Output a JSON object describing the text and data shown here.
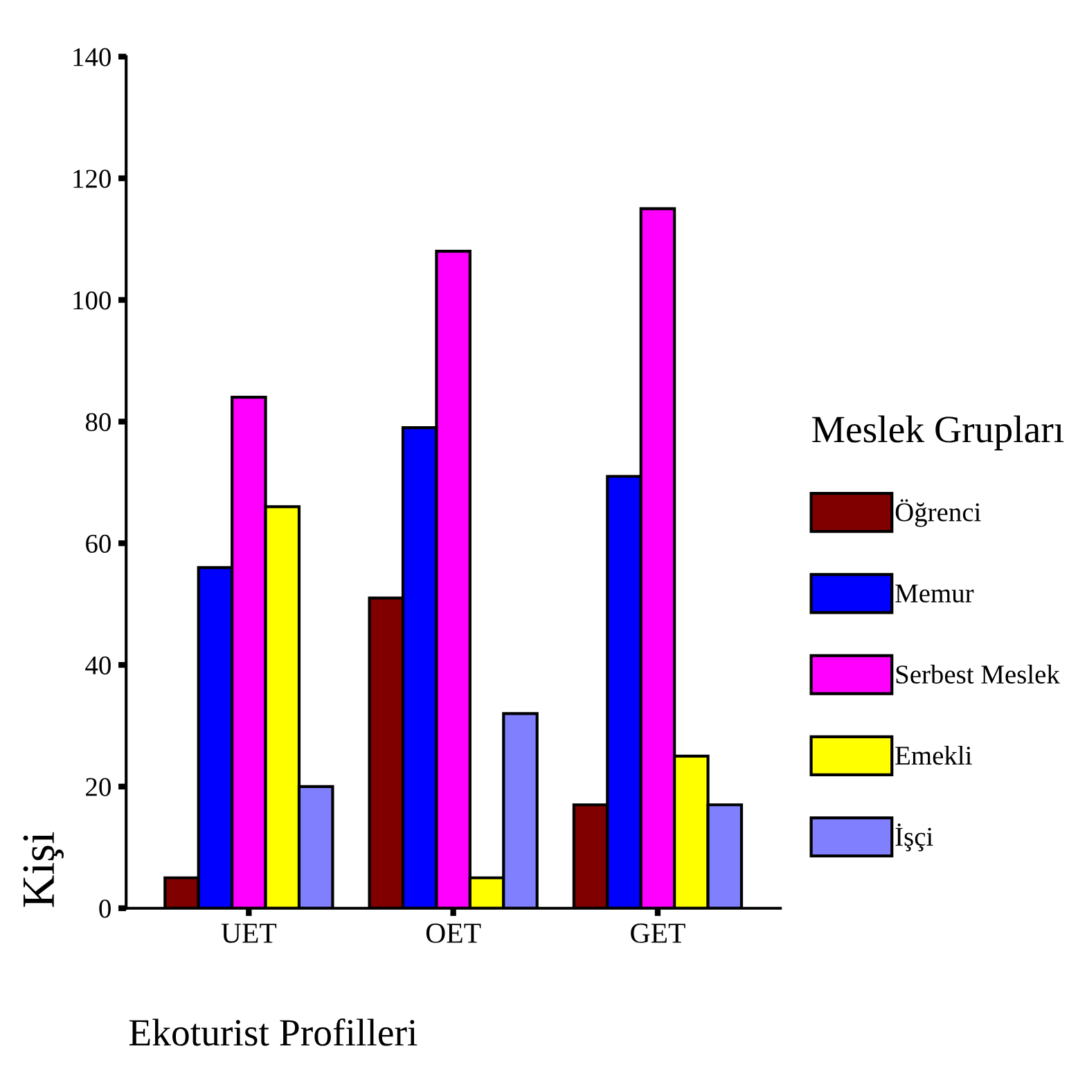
{
  "chart_data": {
    "type": "bar",
    "xlabel": "Ekoturist Profilleri",
    "ylabel": "Kişi",
    "legend_title": "Meslek Grupları",
    "categories": [
      "UET",
      "OET",
      "GET"
    ],
    "series": [
      {
        "name": "Öğrenci",
        "color": "#800000",
        "values": [
          5,
          51,
          17
        ]
      },
      {
        "name": "Memur",
        "color": "#0000ff",
        "values": [
          56,
          79,
          71
        ]
      },
      {
        "name": "Serbest Meslek",
        "color": "#ff00ff",
        "values": [
          84,
          108,
          115
        ]
      },
      {
        "name": "Emekli",
        "color": "#ffff00",
        "values": [
          66,
          5,
          25
        ]
      },
      {
        "name": "İşçi",
        "color": "#8080ff",
        "values": [
          20,
          32,
          17
        ]
      }
    ],
    "ylim": [
      0,
      140
    ],
    "yticks": [
      0,
      20,
      40,
      60,
      80,
      100,
      120,
      140
    ],
    "grid": false,
    "legend": "right"
  }
}
